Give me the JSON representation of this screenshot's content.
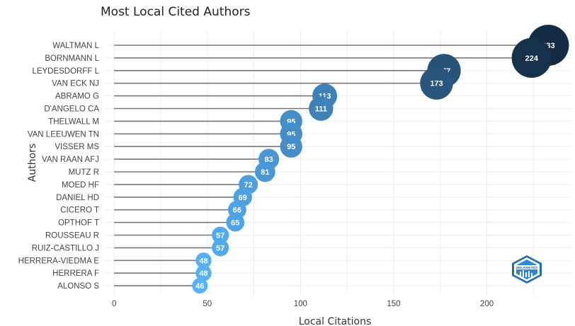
{
  "chart_data": {
    "type": "scatter",
    "title": "Most Local Cited Authors",
    "xlabel": "Local Citations",
    "ylabel": "Authors",
    "xlim": [
      -5,
      245
    ],
    "xticks": [
      0,
      50,
      100,
      150,
      200
    ],
    "grid": true,
    "categories": [
      "WALTMAN L",
      "BORNMANN L",
      "LEYDESDORFF L",
      "VAN ECK NJ",
      "ABRAMO G",
      "D'ANGELO CA",
      "THELWALL M",
      "VAN LEEUWEN TN",
      "VISSER MS",
      "VAN RAAN AFJ",
      "MUTZ R",
      "MOED HF",
      "DANIEL HD",
      "CICERO T",
      "OPTHOF T",
      "ROUSSEAU R",
      "RUIZ-CASTILLO J",
      "HERRERA-VIEDMA E",
      "HERRERA F",
      "ALONSO S"
    ],
    "values": [
      233,
      224,
      177,
      173,
      113,
      111,
      95,
      95,
      95,
      83,
      81,
      72,
      69,
      66,
      65,
      57,
      57,
      48,
      48,
      46
    ],
    "colors": {
      "dark": "#132b43",
      "light": "#56b1f7",
      "stem": "#777777",
      "grid": "#ebebeb"
    }
  },
  "logo": {
    "text": "BIBLIOMETRIX",
    "icon": "bibliometrix-logo-icon"
  }
}
